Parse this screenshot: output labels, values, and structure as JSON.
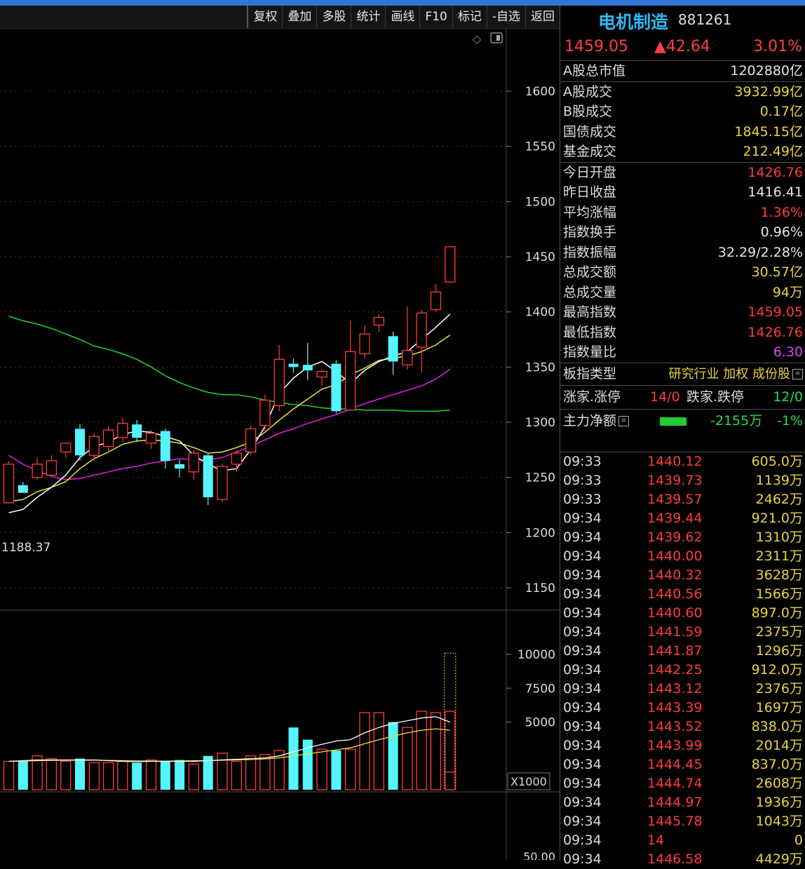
{
  "colors": {
    "up": "#ff3b3b",
    "down": "#54f5ff",
    "ma5": "#ffffff",
    "ma10": "#f0e130",
    "ma20": "#e020e0",
    "ma60": "#22d22e",
    "accent": "#2fb7f2"
  },
  "toolbar": {
    "items": [
      "复权",
      "叠加",
      "多股",
      "统计",
      "画线",
      "F10",
      "标记",
      "-自选",
      "返回"
    ]
  },
  "chart_icons": {
    "diamond": "diamond-icon",
    "panel": "panel-toggle-icon"
  },
  "chart_data": [
    {
      "type": "candlestick",
      "y_ticks": [
        "1600",
        "1550",
        "1500",
        "1450",
        "1400",
        "1350",
        "1300",
        "1250",
        "1200",
        "1150"
      ],
      "ylim": [
        1150,
        1600
      ],
      "low_marker": "1188.37",
      "candles": [
        {
          "o": 1227,
          "h": 1265,
          "l": 1227,
          "c": 1262
        },
        {
          "o": 1243,
          "h": 1246,
          "l": 1237,
          "c": 1236
        },
        {
          "o": 1250,
          "h": 1268,
          "l": 1248,
          "c": 1262
        },
        {
          "o": 1252,
          "h": 1270,
          "l": 1252,
          "c": 1265
        },
        {
          "o": 1273,
          "h": 1282,
          "l": 1268,
          "c": 1281
        },
        {
          "o": 1294,
          "h": 1298,
          "l": 1265,
          "c": 1270
        },
        {
          "o": 1270,
          "h": 1290,
          "l": 1265,
          "c": 1287
        },
        {
          "o": 1278,
          "h": 1296,
          "l": 1274,
          "c": 1293
        },
        {
          "o": 1286,
          "h": 1304,
          "l": 1282,
          "c": 1299
        },
        {
          "o": 1298,
          "h": 1302,
          "l": 1282,
          "c": 1286
        },
        {
          "o": 1281,
          "h": 1293,
          "l": 1276,
          "c": 1290
        },
        {
          "o": 1292,
          "h": 1294,
          "l": 1258,
          "c": 1265
        },
        {
          "o": 1262,
          "h": 1266,
          "l": 1250,
          "c": 1258
        },
        {
          "o": 1255,
          "h": 1275,
          "l": 1248,
          "c": 1272
        },
        {
          "o": 1270,
          "h": 1272,
          "l": 1225,
          "c": 1232
        },
        {
          "o": 1230,
          "h": 1262,
          "l": 1228,
          "c": 1260
        },
        {
          "o": 1262,
          "h": 1275,
          "l": 1255,
          "c": 1272
        },
        {
          "o": 1273,
          "h": 1297,
          "l": 1270,
          "c": 1294
        },
        {
          "o": 1297,
          "h": 1325,
          "l": 1292,
          "c": 1320
        },
        {
          "o": 1315,
          "h": 1370,
          "l": 1310,
          "c": 1357
        },
        {
          "o": 1353,
          "h": 1358,
          "l": 1345,
          "c": 1350
        },
        {
          "o": 1352,
          "h": 1372,
          "l": 1338,
          "c": 1347
        },
        {
          "o": 1341,
          "h": 1348,
          "l": 1333,
          "c": 1346
        },
        {
          "o": 1353,
          "h": 1356,
          "l": 1308,
          "c": 1310
        },
        {
          "o": 1311,
          "h": 1392,
          "l": 1310,
          "c": 1364
        },
        {
          "o": 1362,
          "h": 1388,
          "l": 1358,
          "c": 1380
        },
        {
          "o": 1388,
          "h": 1398,
          "l": 1382,
          "c": 1395
        },
        {
          "o": 1378,
          "h": 1382,
          "l": 1343,
          "c": 1355
        },
        {
          "o": 1352,
          "h": 1405,
          "l": 1348,
          "c": 1365
        },
        {
          "o": 1368,
          "h": 1402,
          "l": 1345,
          "c": 1399
        },
        {
          "o": 1402,
          "h": 1425,
          "l": 1400,
          "c": 1418
        },
        {
          "o": 1427,
          "h": 1459,
          "l": 1427,
          "c": 1459
        }
      ],
      "ma5": [
        1218,
        1221,
        1232,
        1241,
        1252,
        1268,
        1278,
        1282,
        1289,
        1292,
        1291,
        1287,
        1283,
        1270,
        1262,
        1256,
        1258,
        1275,
        1296,
        1326,
        1340,
        1350,
        1355,
        1346,
        1335,
        1347,
        1355,
        1360,
        1364,
        1375,
        1386,
        1398
      ],
      "ma10": [
        1228,
        1230,
        1237,
        1241,
        1246,
        1258,
        1267,
        1273,
        1280,
        1283,
        1284,
        1283,
        1281,
        1277,
        1272,
        1273,
        1277,
        1282,
        1291,
        1302,
        1312,
        1321,
        1330,
        1334,
        1343,
        1349,
        1356,
        1358,
        1360,
        1364,
        1370,
        1379
      ],
      "ma20": [
        1270,
        1262,
        1256,
        1251,
        1248,
        1249,
        1252,
        1255,
        1258,
        1260,
        1263,
        1265,
        1267,
        1266,
        1266,
        1268,
        1273,
        1278,
        1284,
        1290,
        1294,
        1299,
        1303,
        1307,
        1312,
        1317,
        1321,
        1325,
        1329,
        1333,
        1339,
        1348
      ],
      "ma60": [
        1396,
        1392,
        1389,
        1385,
        1380,
        1375,
        1369,
        1366,
        1362,
        1357,
        1350,
        1342,
        1336,
        1331,
        1327,
        1325,
        1325,
        1323,
        1320,
        1318,
        1316,
        1315,
        1313,
        1312,
        1312,
        1311,
        1311,
        1311,
        1310,
        1310,
        1310,
        1311
      ]
    },
    {
      "type": "bar",
      "y_ticks": [
        "10000",
        "7500",
        "5000"
      ],
      "unit_label": "X1000",
      "ylim": [
        0,
        11500
      ],
      "values": [
        2100,
        2100,
        2500,
        2300,
        2100,
        2300,
        2000,
        2000,
        2100,
        2000,
        2200,
        2100,
        2200,
        1900,
        2500,
        2700,
        2100,
        2500,
        2600,
        2900,
        4600,
        3700,
        3000,
        2900,
        3000,
        5700,
        5700,
        5000,
        4600,
        5800,
        5700,
        5800
      ],
      "ma5": [
        2100,
        2150,
        2200,
        2200,
        2200,
        2200,
        2200,
        2150,
        2100,
        2080,
        2100,
        2100,
        2100,
        2100,
        2150,
        2200,
        2250,
        2300,
        2350,
        2500,
        2800,
        3100,
        3350,
        3600,
        3700,
        4200,
        4600,
        4900,
        5100,
        5300,
        5400,
        5000
      ],
      "ma10": [
        2100,
        2120,
        2150,
        2170,
        2180,
        2180,
        2180,
        2170,
        2150,
        2130,
        2120,
        2120,
        2130,
        2140,
        2150,
        2180,
        2200,
        2230,
        2280,
        2350,
        2500,
        2650,
        2800,
        2950,
        3100,
        3400,
        3700,
        3950,
        4200,
        4400,
        4500,
        4400
      ],
      "last_bar": {
        "value": 1300,
        "projected": 10100
      }
    }
  ],
  "quote": {
    "name": "电机制造",
    "code": "881261",
    "price": "1459.05",
    "change": "▲42.64",
    "pct": "3.01%"
  },
  "stats_block1": [
    {
      "k": "A股总市值",
      "v": "1202880亿",
      "c": "white"
    }
  ],
  "stats_block2": [
    {
      "k": "A股成交",
      "v": "3932.99亿",
      "c": "yellow"
    },
    {
      "k": "B股成交",
      "v": "0.17亿",
      "c": "yellow"
    },
    {
      "k": "国债成交",
      "v": "1845.15亿",
      "c": "yellow"
    },
    {
      "k": "基金成交",
      "v": "212.49亿",
      "c": "yellow"
    }
  ],
  "stats_block3": [
    {
      "k": "今日开盘",
      "v": "1426.76",
      "c": "red"
    },
    {
      "k": "昨日收盘",
      "v": "1416.41",
      "c": "white"
    },
    {
      "k": "平均涨幅",
      "v": "1.36%",
      "c": "red"
    },
    {
      "k": "指数换手",
      "v": "0.96%",
      "c": "white"
    },
    {
      "k": "指数振幅",
      "v": "32.29/2.28%",
      "c": "white"
    },
    {
      "k": "总成交额",
      "v": "30.57亿",
      "c": "yellow"
    },
    {
      "k": "总成交量",
      "v": "94万",
      "c": "yellow"
    },
    {
      "k": "最高指数",
      "v": "1459.05",
      "c": "red"
    },
    {
      "k": "最低指数",
      "v": "1426.76",
      "c": "red"
    },
    {
      "k": "指数量比",
      "v": "6.30",
      "c": "magenta"
    }
  ],
  "board": {
    "label": "板指类型",
    "value": "研究行业 加权 成份股"
  },
  "limits": {
    "up_label": "涨家.涨停",
    "up_value": "14/0",
    "down_label": "跌家.跌停",
    "down_value": "12/0"
  },
  "main_flow": {
    "label": "主力净额",
    "value": "-2155万",
    "pct": "-1%"
  },
  "ticks": [
    {
      "t": "09:33",
      "p": "1440.12",
      "v": "605.0万"
    },
    {
      "t": "09:33",
      "p": "1439.73",
      "v": "1139万"
    },
    {
      "t": "09:33",
      "p": "1439.57",
      "v": "2462万"
    },
    {
      "t": "09:34",
      "p": "1439.44",
      "v": "921.0万"
    },
    {
      "t": "09:34",
      "p": "1439.62",
      "v": "1310万"
    },
    {
      "t": "09:34",
      "p": "1440.00",
      "v": "2311万"
    },
    {
      "t": "09:34",
      "p": "1440.32",
      "v": "3628万"
    },
    {
      "t": "09:34",
      "p": "1440.56",
      "v": "1566万"
    },
    {
      "t": "09:34",
      "p": "1440.60",
      "v": "897.0万"
    },
    {
      "t": "09:34",
      "p": "1441.59",
      "v": "2375万"
    },
    {
      "t": "09:34",
      "p": "1441.87",
      "v": "1296万"
    },
    {
      "t": "09:34",
      "p": "1442.25",
      "v": "912.0万"
    },
    {
      "t": "09:34",
      "p": "1443.12",
      "v": "2376万"
    },
    {
      "t": "09:34",
      "p": "1443.39",
      "v": "1697万"
    },
    {
      "t": "09:34",
      "p": "1443.52",
      "v": "838.0万"
    },
    {
      "t": "09:34",
      "p": "1443.99",
      "v": "2014万"
    },
    {
      "t": "09:34",
      "p": "1444.45",
      "v": "837.0万"
    },
    {
      "t": "09:34",
      "p": "1444.74",
      "v": "2608万"
    },
    {
      "t": "09:34",
      "p": "1444.97",
      "v": "1936万"
    },
    {
      "t": "09:34",
      "p": "1445.78",
      "v": "1043万"
    },
    {
      "t": "09:34",
      "p": "14",
      "v": "0"
    },
    {
      "t": "09:34",
      "p": "1446.58",
      "v": "4429万"
    }
  ],
  "bottom_axis_label": "50.00"
}
